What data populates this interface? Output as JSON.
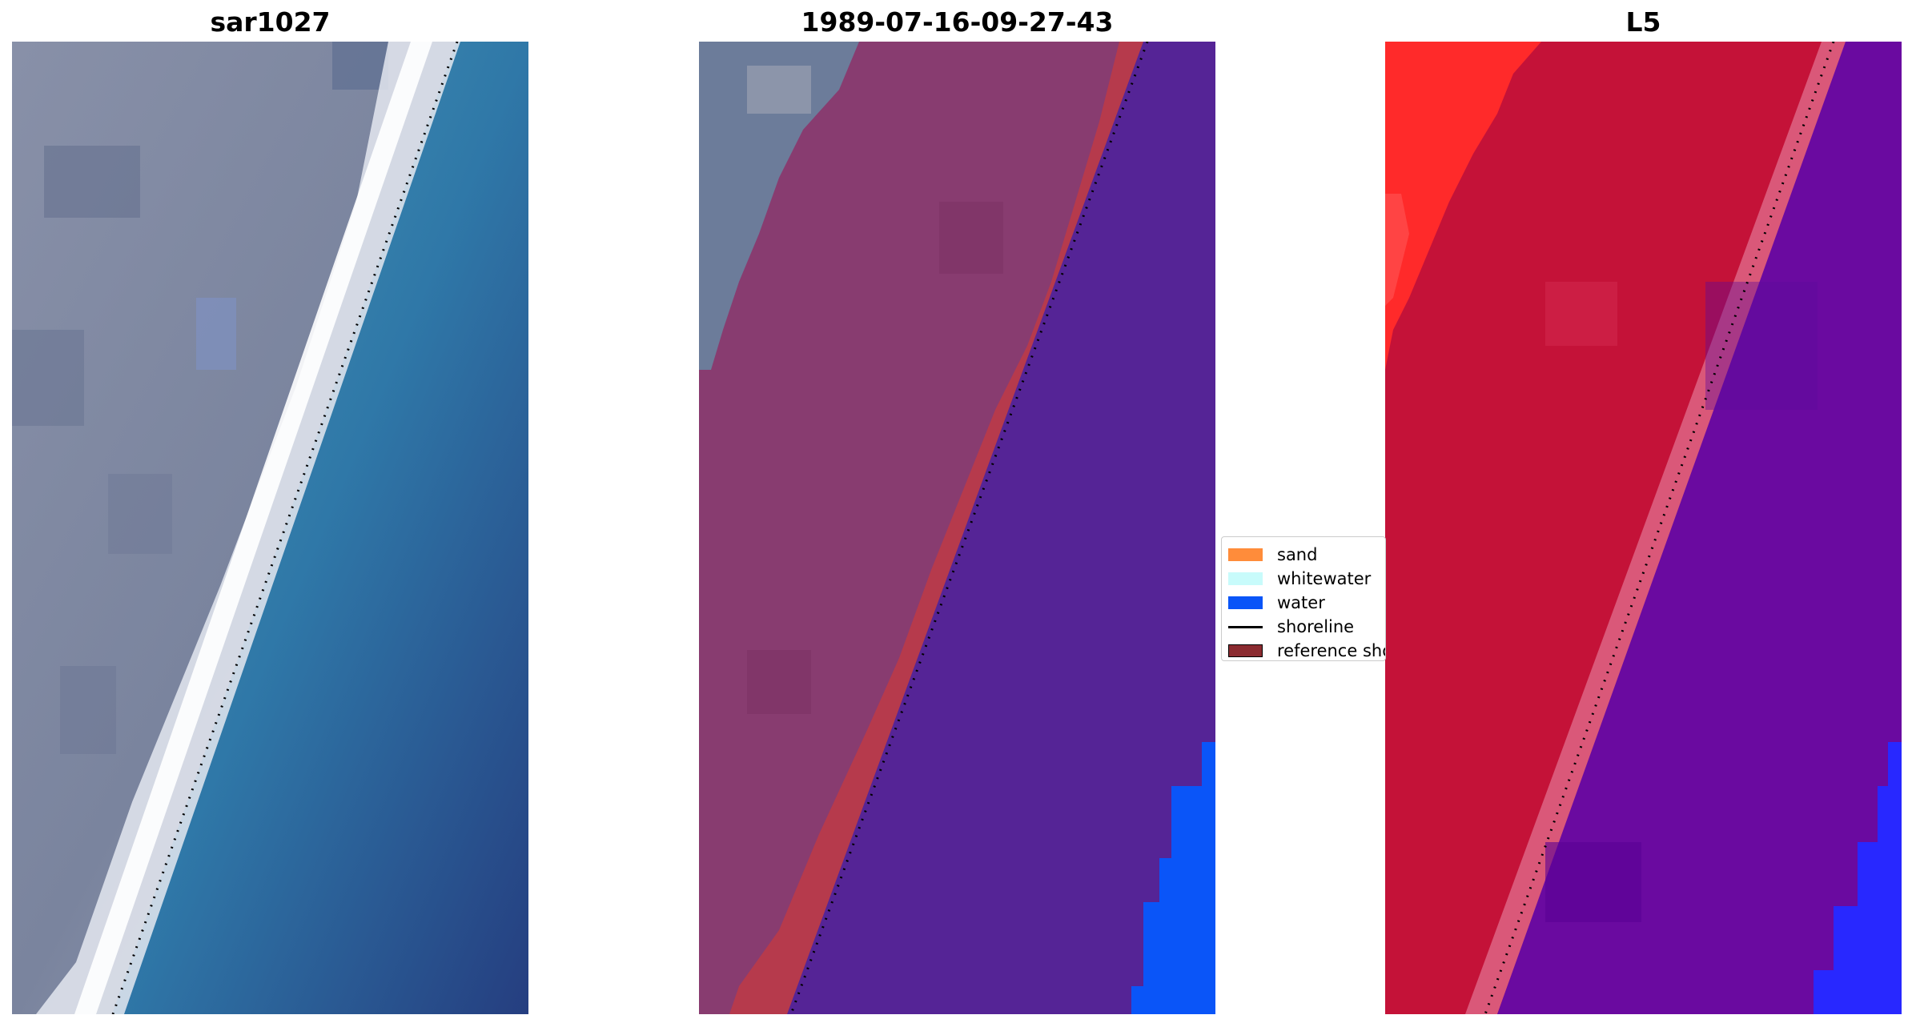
{
  "panels": [
    {
      "title": "sar1027"
    },
    {
      "title": "1989-07-16-09-27-43"
    },
    {
      "title": "L5"
    }
  ],
  "legend": {
    "items": [
      {
        "label": "sand",
        "color": "#ff8c3a"
      },
      {
        "label": "whitewater",
        "color": "#c8fbfb"
      },
      {
        "label": "water",
        "color": "#0a55f8"
      },
      {
        "label": "shoreline",
        "color": "#000000",
        "kind": "line"
      },
      {
        "label": "reference shoreline",
        "color": "#8b2b30"
      }
    ]
  },
  "colors": {
    "land_gray": "#7c86a2",
    "ocean_teal": "#3d8fb0",
    "ocean_deep": "#2a4f8f",
    "surf_white": "#f2f4f7",
    "class_land_magenta": "#863a6e",
    "class_sand_red": "#b4384c",
    "class_water_purple": "#542494",
    "class_water_blue": "#0a55f8",
    "l5_red": "#c4143a",
    "l5_bright_red": "#ff2020",
    "l5_purple": "#6a0aa0",
    "l5_blue": "#2626ff"
  }
}
